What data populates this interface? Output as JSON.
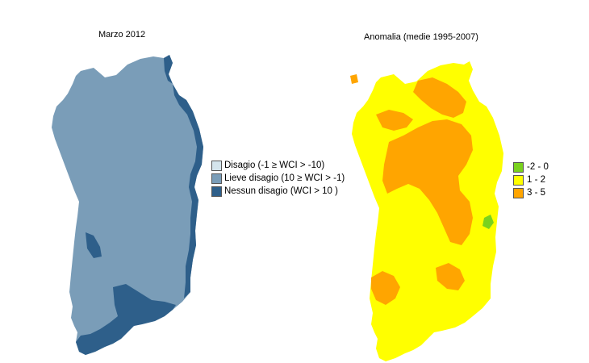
{
  "maps": {
    "left": {
      "title": "Marzo 2012",
      "legend": [
        {
          "label": "Disagio (-1 ≥ WCI > -10)",
          "color": "#d4e4ec"
        },
        {
          "label": "Lieve disagio (10 ≥ WCI > -1)",
          "color": "#7a9db8"
        },
        {
          "label": "Nessun disagio (WCI > 10 )",
          "color": "#2e5f8a"
        }
      ]
    },
    "right": {
      "title": "Anomalia (medie 1995-2007)",
      "legend": [
        {
          "label": "-2 - 0",
          "color": "#7ad21e"
        },
        {
          "label": "1 - 2",
          "color": "#ffff00"
        },
        {
          "label": "3 - 5",
          "color": "#ffa500"
        }
      ]
    }
  },
  "colors": {
    "main_fill_left": "#7a9db8",
    "coast_fill_left": "#2e5f8a",
    "main_fill_right": "#ffff00",
    "hot_fill_right": "#ffa500",
    "cool_fill_right": "#7ad21e"
  }
}
